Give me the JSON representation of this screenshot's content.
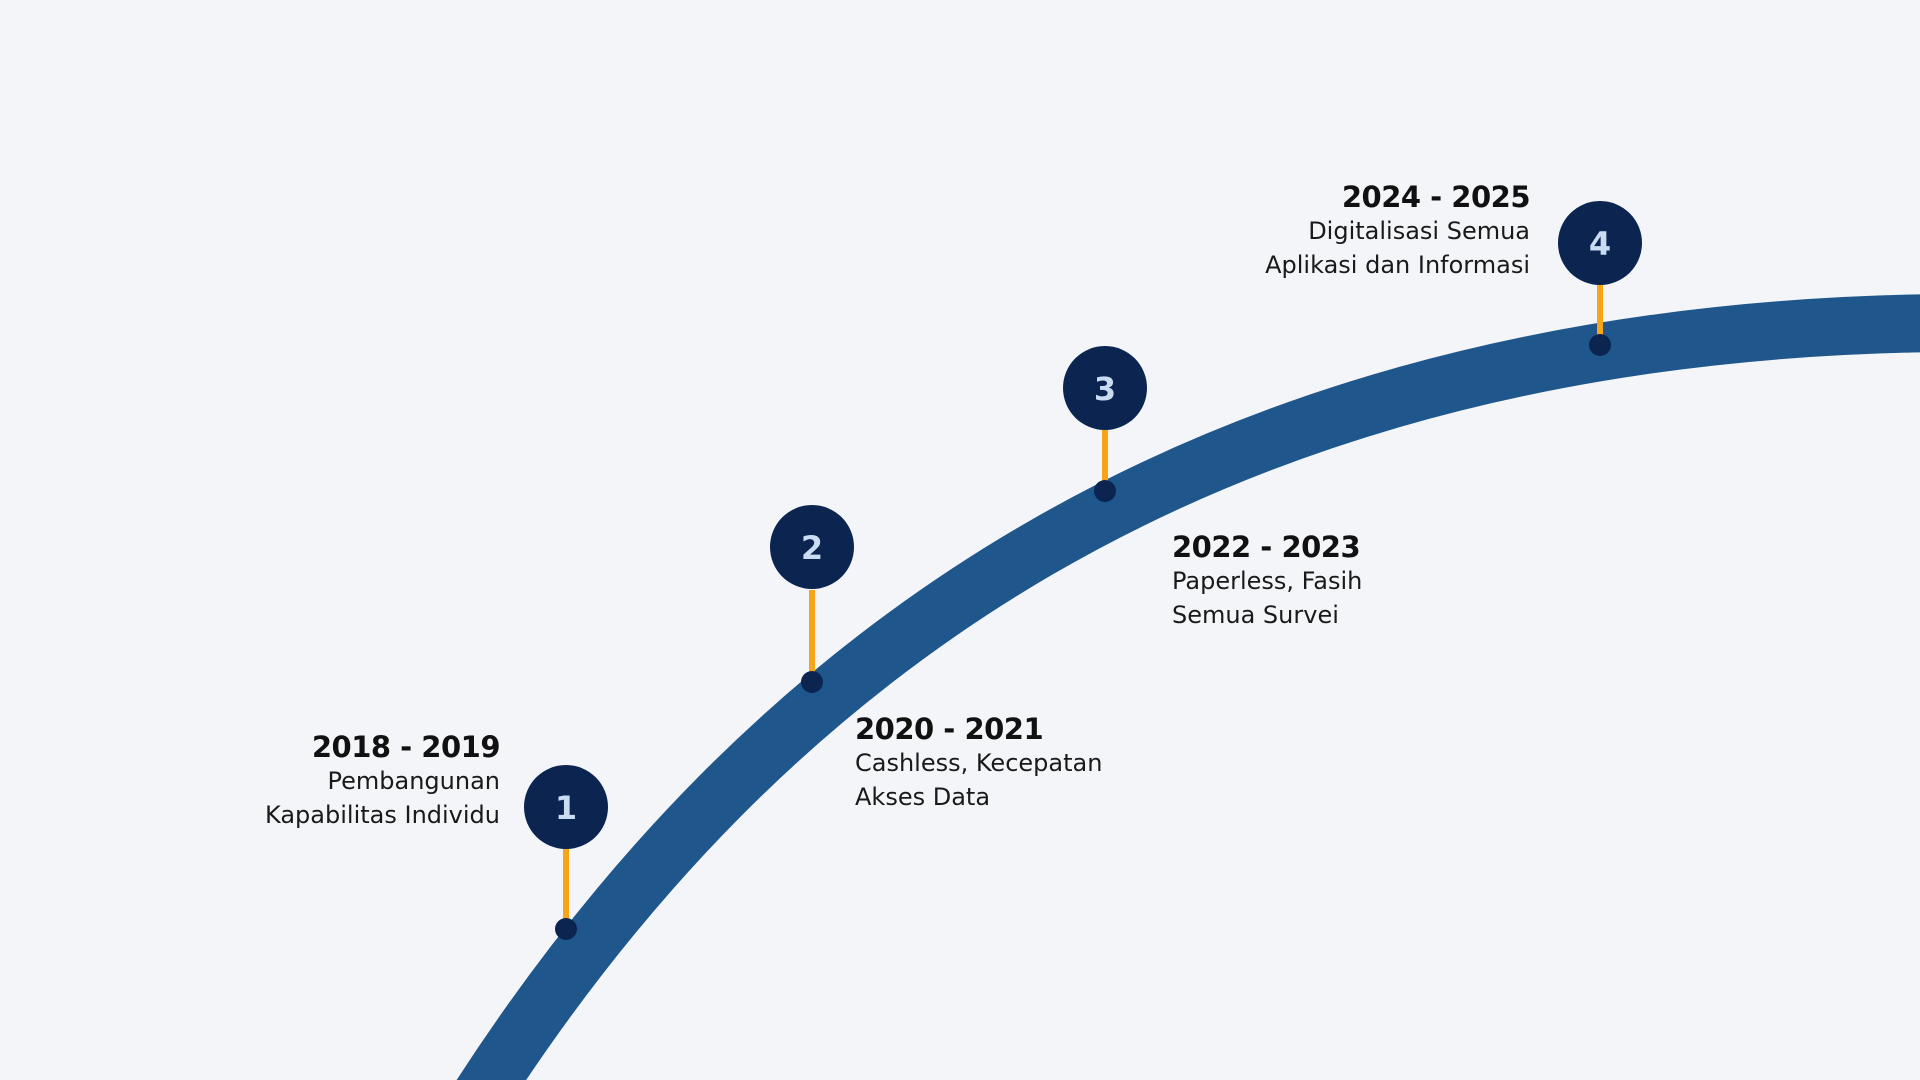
{
  "colors": {
    "background": "#f3f5f9",
    "road": "#1f578c",
    "badge": "#0b2450",
    "badge_text": "#c9dcf2",
    "pin_stem": "#f5a516",
    "pin_dot": "#0b2450"
  },
  "milestones": [
    {
      "number": "1",
      "years": "2018 - 2019",
      "desc_line1": "Pembangunan",
      "desc_line2": "Kapabilitas Individu"
    },
    {
      "number": "2",
      "years": "2020 - 2021",
      "desc_line1": "Cashless, Kecepatan",
      "desc_line2": "Akses Data"
    },
    {
      "number": "3",
      "years": "2022 - 2023",
      "desc_line1": "Paperless, Fasih",
      "desc_line2": "Semua Survei"
    },
    {
      "number": "4",
      "years": "2024 - 2025",
      "desc_line1": "Digitalisasi Semua",
      "desc_line2": "Aplikasi dan Informasi"
    }
  ]
}
